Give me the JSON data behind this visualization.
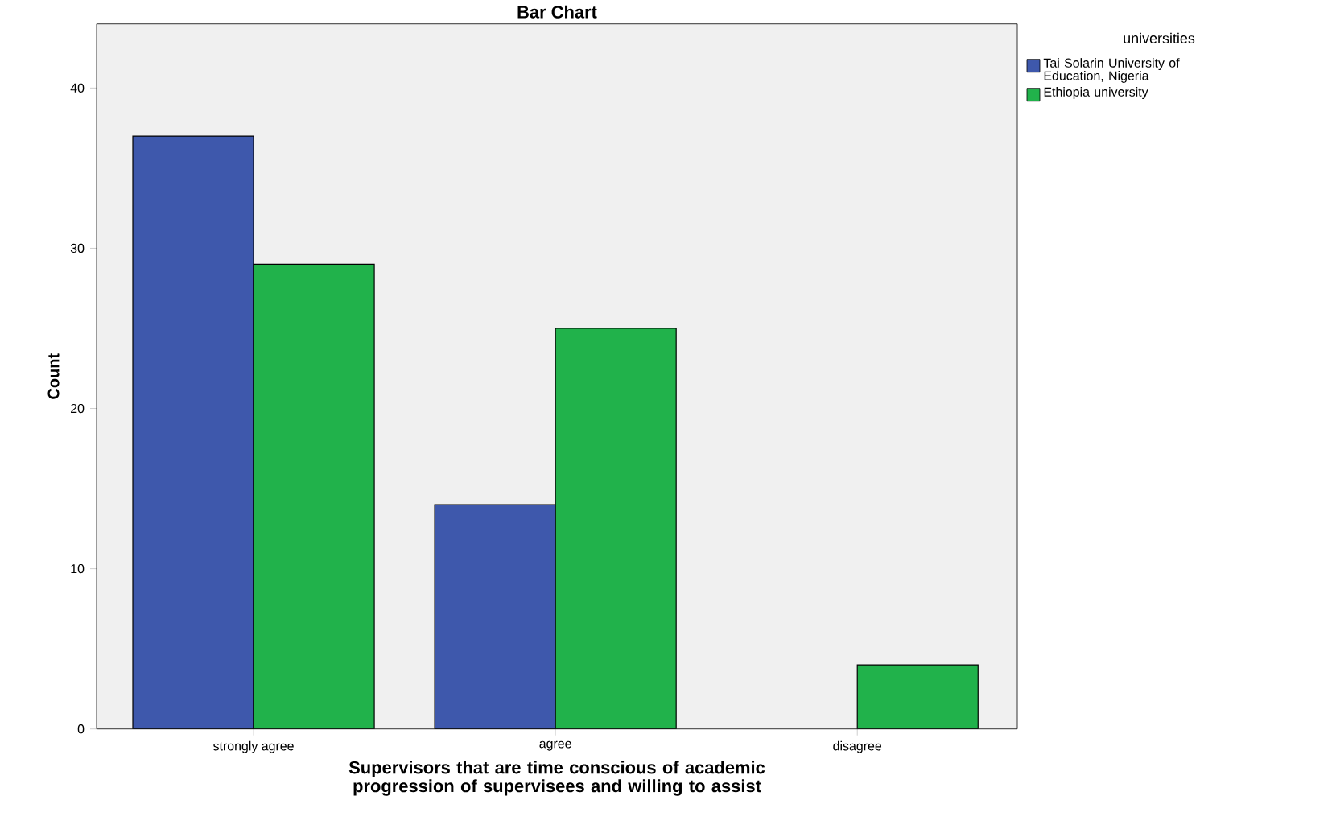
{
  "chart_data": {
    "type": "bar",
    "title": "Bar Chart",
    "xlabel": "Supervisors that are time conscious of academic progression of supervisees and willing to assist",
    "ylabel": "Count",
    "legend_title": "universities",
    "categories": [
      "strongly agree",
      "agree",
      "disagree"
    ],
    "series": [
      {
        "name": "Tai Solarin University of Education, Nigeria",
        "color": "#3e58ac",
        "values": [
          37,
          14,
          null
        ]
      },
      {
        "name": "Ethiopia university",
        "color": "#21b24b",
        "values": [
          29,
          25,
          4
        ]
      }
    ],
    "ylim": [
      0,
      44
    ],
    "yticks": [
      0,
      10,
      20,
      30,
      40
    ],
    "grid": false,
    "legend": "top right"
  }
}
